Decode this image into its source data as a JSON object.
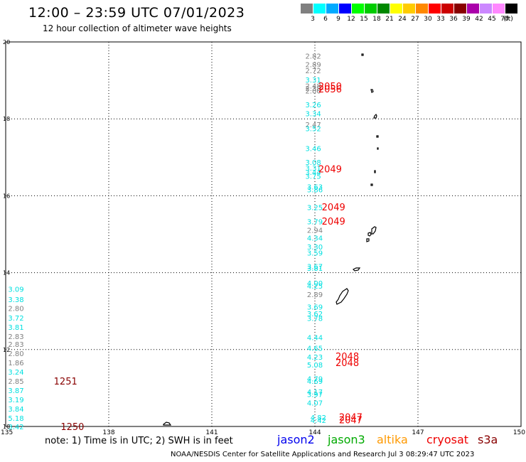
{
  "header": {
    "title": "12:00 – 23:59 UTC 07/01/2023",
    "subtitle": "12 hour collection of altimeter wave heights"
  },
  "colorbar": {
    "colors": [
      "#808080",
      "#00ffff",
      "#00aaff",
      "#0000ff",
      "#00ff00",
      "#00cc00",
      "#008800",
      "#ffff00",
      "#ffcc00",
      "#ff8800",
      "#ff0000",
      "#cc0000",
      "#880000",
      "#aa00aa",
      "#cc88ff",
      "#ff88ff",
      "#000000"
    ],
    "labels": [
      "3",
      "6",
      "9",
      "12",
      "15",
      "18",
      "21",
      "24",
      "27",
      "30",
      "33",
      "36",
      "39",
      "42",
      "45",
      "70",
      "(ft)"
    ]
  },
  "footer": {
    "note": "note: 1) Time is in UTC; 2) SWH is in feet",
    "satellites": [
      {
        "name": "jason2",
        "color": "#0000ee"
      },
      {
        "name": "jason3",
        "color": "#00aa00"
      },
      {
        "name": "altika",
        "color": "#ff9900"
      },
      {
        "name": "cryosat",
        "color": "#ee0000"
      },
      {
        "name": "s3a",
        "color": "#880000"
      }
    ],
    "credit": "NOAA/NESDIS Center for Satellite Applications and Research    Jul  3 08:29:47 UTC 2023"
  },
  "chart_data": {
    "type": "scatter",
    "title": "12:00 – 23:59 UTC 07/01/2023",
    "subtitle": "12 hour collection of altimeter wave heights",
    "xlim": [
      135,
      150
    ],
    "ylim": [
      10,
      20
    ],
    "x_ticks": [
      "135",
      "138",
      "141",
      "144",
      "147",
      "150"
    ],
    "y_ticks": [
      "10",
      "12",
      "14",
      "16",
      "18",
      "20"
    ],
    "grid": true,
    "points": [
      {
        "lon": 143.95,
        "lat": 19.64,
        "label": "2.82",
        "color": "#808080"
      },
      {
        "lon": 143.95,
        "lat": 19.42,
        "label": "2.89",
        "color": "#808080"
      },
      {
        "lon": 143.95,
        "lat": 19.26,
        "label": "2.72",
        "color": "#808080"
      },
      {
        "lon": 143.95,
        "lat": 19.02,
        "label": "3.31",
        "color": "#00e0e0"
      },
      {
        "lon": 143.95,
        "lat": 18.86,
        "label": "2.48",
        "color": "#808080"
      },
      {
        "lon": 143.95,
        "lat": 18.8,
        "label": "2.38",
        "color": "#808080"
      },
      {
        "lon": 143.95,
        "lat": 18.73,
        "label": "2.00",
        "color": "#808080"
      },
      {
        "lon": 143.95,
        "lat": 18.37,
        "label": "3.26",
        "color": "#00e0e0"
      },
      {
        "lon": 143.95,
        "lat": 18.14,
        "label": "3.34",
        "color": "#00e0e0"
      },
      {
        "lon": 143.95,
        "lat": 17.86,
        "label": "2.47",
        "color": "#808080"
      },
      {
        "lon": 143.95,
        "lat": 17.75,
        "label": "3.52",
        "color": "#00e0e0"
      },
      {
        "lon": 143.95,
        "lat": 17.24,
        "label": "3.46",
        "color": "#00e0e0"
      },
      {
        "lon": 143.95,
        "lat": 16.88,
        "label": "3.08",
        "color": "#00e0e0"
      },
      {
        "lon": 143.95,
        "lat": 16.73,
        "label": "3.31",
        "color": "#00e0e0"
      },
      {
        "lon": 143.95,
        "lat": 16.62,
        "label": "3.44",
        "color": "#00e0e0"
      },
      {
        "lon": 143.95,
        "lat": 16.52,
        "label": "3.75",
        "color": "#00e0e0"
      },
      {
        "lon": 144.0,
        "lat": 16.24,
        "label": "3.63",
        "color": "#00e0e0"
      },
      {
        "lon": 144.0,
        "lat": 16.16,
        "label": "3.86",
        "color": "#00e0e0"
      },
      {
        "lon": 144.0,
        "lat": 15.7,
        "label": "3.25",
        "color": "#00e0e0"
      },
      {
        "lon": 144.0,
        "lat": 15.33,
        "label": "3.79",
        "color": "#00e0e0"
      },
      {
        "lon": 144.0,
        "lat": 15.11,
        "label": "2.94",
        "color": "#808080"
      },
      {
        "lon": 144.0,
        "lat": 14.91,
        "label": "4.34",
        "color": "#00e0e0"
      },
      {
        "lon": 144.0,
        "lat": 14.68,
        "label": "3.30",
        "color": "#00e0e0"
      },
      {
        "lon": 144.0,
        "lat": 14.52,
        "label": "3.59",
        "color": "#00e0e0"
      },
      {
        "lon": 144.0,
        "lat": 14.17,
        "label": "3.67",
        "color": "#00e0e0"
      },
      {
        "lon": 144.0,
        "lat": 14.12,
        "label": "3.81",
        "color": "#00e0e0"
      },
      {
        "lon": 144.0,
        "lat": 13.73,
        "label": "4.00",
        "color": "#00e0e0"
      },
      {
        "lon": 144.0,
        "lat": 13.66,
        "label": "4.25",
        "color": "#00e0e0"
      },
      {
        "lon": 144.0,
        "lat": 13.44,
        "label": "2.89",
        "color": "#808080"
      },
      {
        "lon": 144.0,
        "lat": 13.11,
        "label": "3.69",
        "color": "#00e0e0"
      },
      {
        "lon": 144.0,
        "lat": 12.94,
        "label": "3.62",
        "color": "#00e0e0"
      },
      {
        "lon": 144.0,
        "lat": 12.82,
        "label": "3.78",
        "color": "#00e0e0"
      },
      {
        "lon": 144.0,
        "lat": 12.32,
        "label": "4.44",
        "color": "#00e0e0"
      },
      {
        "lon": 144.0,
        "lat": 12.04,
        "label": "4.65",
        "color": "#00e0e0"
      },
      {
        "lon": 144.0,
        "lat": 11.81,
        "label": "4.23",
        "color": "#00e0e0"
      },
      {
        "lon": 144.0,
        "lat": 11.61,
        "label": "5.08",
        "color": "#00e0e0"
      },
      {
        "lon": 144.0,
        "lat": 11.25,
        "label": "4.79",
        "color": "#00e0e0"
      },
      {
        "lon": 144.0,
        "lat": 11.18,
        "label": "4.69",
        "color": "#00e0e0"
      },
      {
        "lon": 144.0,
        "lat": 10.91,
        "label": "4.17",
        "color": "#00e0e0"
      },
      {
        "lon": 144.0,
        "lat": 10.84,
        "label": "3.97",
        "color": "#00e0e0"
      },
      {
        "lon": 144.0,
        "lat": 10.62,
        "label": "4.07",
        "color": "#00e0e0"
      },
      {
        "lon": 144.1,
        "lat": 10.24,
        "label": "4.82",
        "color": "#00e0e0"
      },
      {
        "lon": 144.1,
        "lat": 10.17,
        "label": "4.42",
        "color": "#00e0e0"
      },
      {
        "lon": 135.3,
        "lat": 13.58,
        "label": "3.09",
        "color": "#00e0e0"
      },
      {
        "lon": 135.3,
        "lat": 13.31,
        "label": "3.38",
        "color": "#00e0e0"
      },
      {
        "lon": 135.3,
        "lat": 13.08,
        "label": "2.80",
        "color": "#808080"
      },
      {
        "lon": 135.3,
        "lat": 12.83,
        "label": "3.72",
        "color": "#00e0e0"
      },
      {
        "lon": 135.3,
        "lat": 12.59,
        "label": "3.81",
        "color": "#00e0e0"
      },
      {
        "lon": 135.3,
        "lat": 12.35,
        "label": "2.83",
        "color": "#808080"
      },
      {
        "lon": 135.3,
        "lat": 12.14,
        "label": "2.83",
        "color": "#808080"
      },
      {
        "lon": 135.3,
        "lat": 11.9,
        "label": "2.80",
        "color": "#808080"
      },
      {
        "lon": 135.3,
        "lat": 11.66,
        "label": "1.86",
        "color": "#808080"
      },
      {
        "lon": 135.3,
        "lat": 11.42,
        "label": "3.24",
        "color": "#00e0e0"
      },
      {
        "lon": 135.3,
        "lat": 11.18,
        "label": "2.85",
        "color": "#808080"
      },
      {
        "lon": 135.3,
        "lat": 10.94,
        "label": "3.87",
        "color": "#00e0e0"
      },
      {
        "lon": 135.3,
        "lat": 10.7,
        "label": "3.19",
        "color": "#00e0e0"
      },
      {
        "lon": 135.3,
        "lat": 10.46,
        "label": "3.84",
        "color": "#00e0e0"
      },
      {
        "lon": 135.3,
        "lat": 10.22,
        "label": "5.18",
        "color": "#00e0e0"
      },
      {
        "lon": 135.3,
        "lat": 10.0,
        "label": "3.42",
        "color": "#00e0e0"
      }
    ],
    "time_labels": [
      {
        "lon": 144.1,
        "lat": 18.85,
        "label": "2050",
        "color": "#ee0000"
      },
      {
        "lon": 144.1,
        "lat": 18.78,
        "label": "2056",
        "color": "#ee0000"
      },
      {
        "lon": 144.1,
        "lat": 16.7,
        "label": "2049",
        "color": "#ee0000"
      },
      {
        "lon": 144.2,
        "lat": 15.71,
        "label": "2049",
        "color": "#ee0000"
      },
      {
        "lon": 144.2,
        "lat": 15.34,
        "label": "2049",
        "color": "#ee0000"
      },
      {
        "lon": 144.6,
        "lat": 11.83,
        "label": "2048",
        "color": "#ee0000"
      },
      {
        "lon": 144.6,
        "lat": 11.66,
        "label": "2048",
        "color": "#ee0000"
      },
      {
        "lon": 144.7,
        "lat": 10.25,
        "label": "2047",
        "color": "#ee0000"
      },
      {
        "lon": 144.7,
        "lat": 10.18,
        "label": "2047",
        "color": "#ee0000"
      },
      {
        "lon": 136.4,
        "lat": 11.18,
        "label": "1251",
        "color": "#880000"
      },
      {
        "lon": 136.6,
        "lat": 10.0,
        "label": "1250",
        "color": "#880000"
      }
    ]
  }
}
